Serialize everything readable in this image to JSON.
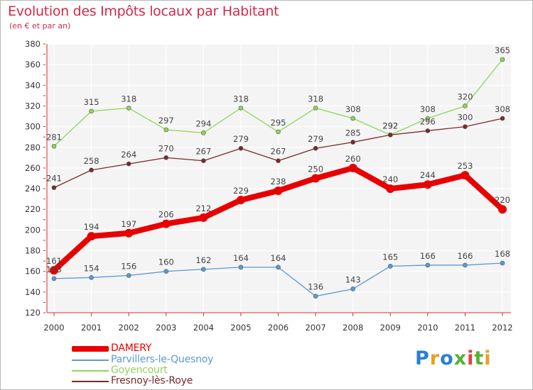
{
  "title": "Evolution des Impôts locaux par Habitant",
  "subtitle": "(en € et par an)",
  "logo": {
    "text": "Proxiti",
    "letter_colors": [
      "#2a7fd4",
      "#e8a020",
      "#2a7fd4",
      "#58b030",
      "#e04040",
      "#58b030",
      "#e8a020"
    ]
  },
  "chart_data": {
    "type": "line",
    "x": [
      "2000",
      "2001",
      "2002",
      "2003",
      "2004",
      "2005",
      "2006",
      "2007",
      "2008",
      "2009",
      "2010",
      "2011",
      "2012"
    ],
    "ylim": [
      120,
      380
    ],
    "yticks": [
      120,
      140,
      160,
      180,
      200,
      220,
      240,
      260,
      280,
      300,
      320,
      340,
      360,
      380
    ],
    "grid": true,
    "legend_position": "bottom-left",
    "series": [
      {
        "name": "DAMERY",
        "color": "#e80000",
        "emphasis": true,
        "values": [
          161,
          194,
          197,
          206,
          212,
          229,
          238,
          250,
          260,
          240,
          244,
          253,
          220
        ]
      },
      {
        "name": "Parvillers-le-Quesnoy",
        "color": "#5a9ad6",
        "values": [
          153,
          154,
          156,
          160,
          162,
          164,
          164,
          136,
          143,
          165,
          166,
          166,
          168
        ]
      },
      {
        "name": "Goyencourt",
        "color": "#8fd45a",
        "values": [
          281,
          315,
          318,
          297,
          294,
          318,
          295,
          318,
          308,
          292,
          308,
          320,
          365
        ]
      },
      {
        "name": "Fresnoy-lès-Roye",
        "color": "#7a2a2a",
        "values": [
          241,
          258,
          264,
          270,
          267,
          279,
          267,
          279,
          285,
          292,
          296,
          300,
          308
        ]
      }
    ]
  }
}
